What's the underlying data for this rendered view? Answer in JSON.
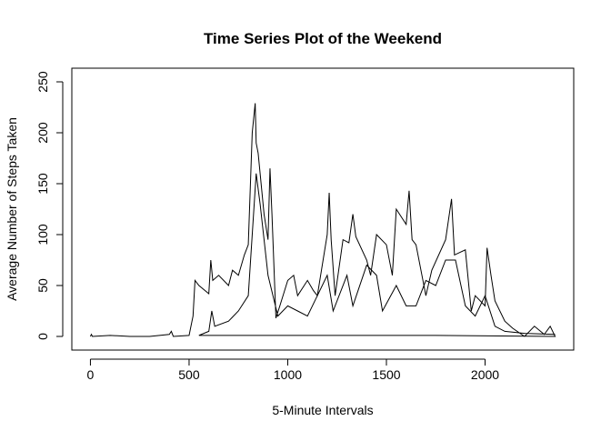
{
  "chart_data": {
    "type": "line",
    "title": "Time Series Plot of the Weekend",
    "x_label": "5-Minute Intervals",
    "y_label": "Average Number of Steps Taken",
    "x": [
      0,
      5,
      10,
      100,
      200,
      300,
      400,
      410,
      420,
      500,
      520,
      530,
      550,
      600,
      610,
      620,
      650,
      700,
      720,
      750,
      780,
      800,
      820,
      835,
      840,
      850,
      860,
      880,
      900,
      910,
      920,
      940,
      960,
      1000,
      1030,
      1050,
      1100,
      1130,
      1150,
      1200,
      1210,
      1220,
      1240,
      1280,
      1310,
      1330,
      1345,
      1400,
      1420,
      1450,
      1500,
      1530,
      1550,
      1600,
      1615,
      1630,
      1650,
      1700,
      1730,
      1800,
      1830,
      1845,
      1900,
      1930,
      1950,
      2000,
      2010,
      2030,
      2050,
      2100,
      2140,
      2200,
      2250,
      2300,
      2330,
      2355,
      1750,
      550,
      600,
      615,
      630,
      700,
      750,
      800,
      840,
      860,
      900,
      950,
      1000,
      1050,
      1100,
      1150,
      1200,
      1230,
      1300,
      1330,
      1400,
      1450,
      1480,
      1550,
      1600,
      1650,
      1700,
      1750,
      1800,
      1850,
      1900,
      1950,
      2000,
      2050,
      2100,
      2200,
      2355
    ],
    "series": [
      {
        "color": "#000000",
        "values": [
          0,
          2,
          0,
          1,
          0,
          0,
          2,
          5,
          0,
          1,
          20,
          55,
          50,
          42,
          75,
          55,
          60,
          50,
          65,
          60,
          80,
          90,
          200,
          229,
          190,
          180,
          160,
          120,
          95,
          165,
          120,
          18,
          30,
          55,
          60,
          40,
          55,
          45,
          40,
          100,
          141,
          95,
          40,
          95,
          92,
          120,
          98,
          75,
          60,
          100,
          90,
          60,
          125,
          110,
          143,
          95,
          90,
          40,
          65,
          95,
          135,
          80,
          85,
          25,
          40,
          30,
          87,
          60,
          35,
          15,
          8,
          0,
          10,
          2,
          10,
          0,
          1,
          1,
          5,
          25,
          10,
          15,
          25,
          40,
          160,
          130,
          60,
          20,
          30,
          25,
          20,
          40,
          60,
          25,
          60,
          30,
          70,
          60,
          25,
          50,
          30,
          30,
          55,
          50,
          75,
          75,
          30,
          20,
          40,
          10,
          5,
          3,
          2
        ]
      }
    ],
    "xlim": [
      -94.2,
      2449.2
    ],
    "ylim": [
      -13.4,
      263.4
    ],
    "xticks": [
      0,
      500,
      1000,
      1500,
      2000
    ],
    "yticks": [
      0,
      50,
      100,
      150,
      200,
      250
    ]
  }
}
